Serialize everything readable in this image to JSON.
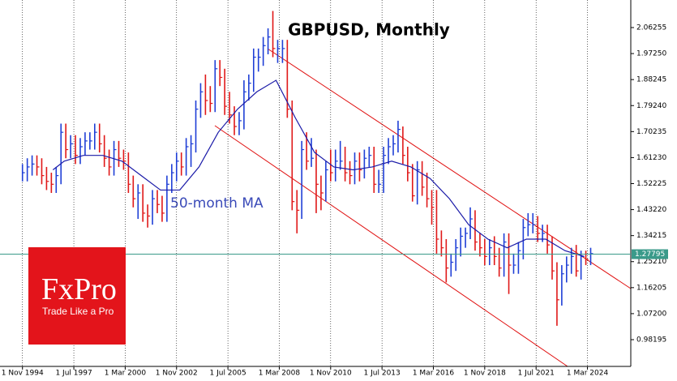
{
  "chart_data": {
    "type": "ohlc",
    "title": "GBPUSD, Monthly",
    "x": [
      "1 Nov 1994",
      "1 Feb 1995",
      "1 May 1995",
      "1 Aug 1995",
      "1 Nov 1995",
      "1 Feb 1996",
      "1 May 1996",
      "1 Aug 1996",
      "1 Nov 1996",
      "1 Feb 1997",
      "1 May 1997",
      "1 Aug 1997",
      "1 Nov 1997",
      "1 Feb 1998",
      "1 May 1998",
      "1 Aug 1998",
      "1 Nov 1998",
      "1 Feb 1999",
      "1 May 1999",
      "1 Aug 1999",
      "1 Nov 1999",
      "1 Feb 2000",
      "1 May 2000",
      "1 Aug 2000",
      "1 Nov 2000",
      "1 Feb 2001",
      "1 May 2001",
      "1 Aug 2001",
      "1 Nov 2001",
      "1 Feb 2002",
      "1 May 2002",
      "1 Aug 2002",
      "1 Nov 2002",
      "1 Feb 2003",
      "1 May 2003",
      "1 Aug 2003",
      "1 Nov 2003",
      "1 Feb 2004",
      "1 May 2004",
      "1 Aug 2004",
      "1 Nov 2004",
      "1 Feb 2005",
      "1 May 2005",
      "1 Aug 2005",
      "1 Nov 2005",
      "1 Feb 2006",
      "1 May 2006",
      "1 Aug 2006",
      "1 Nov 2006",
      "1 Feb 2007",
      "1 May 2007",
      "1 Aug 2007",
      "1 Nov 2007",
      "1 Feb 2008",
      "1 May 2008",
      "1 Aug 2008",
      "1 Nov 2008",
      "1 Feb 2009",
      "1 May 2009",
      "1 Aug 2009",
      "1 Nov 2009",
      "1 Feb 2010",
      "1 May 2010",
      "1 Aug 2010",
      "1 Nov 2010",
      "1 Feb 2011",
      "1 May 2011",
      "1 Aug 2011",
      "1 Nov 2011",
      "1 Feb 2012",
      "1 May 2012",
      "1 Aug 2012",
      "1 Nov 2012",
      "1 Feb 2013",
      "1 May 2013",
      "1 Aug 2013",
      "1 Nov 2013",
      "1 Feb 2014",
      "1 May 2014",
      "1 Aug 2014",
      "1 Nov 2014",
      "1 Feb 2015",
      "1 May 2015",
      "1 Aug 2015",
      "1 Nov 2015",
      "1 Feb 2016",
      "1 May 2016",
      "1 Aug 2016",
      "1 Nov 2016",
      "1 Feb 2017",
      "1 May 2017",
      "1 Aug 2017",
      "1 Nov 2017",
      "1 Feb 2018",
      "1 May 2018",
      "1 Aug 2018",
      "1 Nov 2018",
      "1 Feb 2019",
      "1 May 2019",
      "1 Aug 2019",
      "1 Nov 2019",
      "1 Feb 2020",
      "1 May 2020",
      "1 Aug 2020",
      "1 Nov 2020",
      "1 Feb 2021",
      "1 May 2021",
      "1 Aug 2021",
      "1 Nov 2021",
      "1 Feb 2022",
      "1 May 2022",
      "1 Aug 2022",
      "1 Nov 2022",
      "1 Feb 2023",
      "1 May 2023",
      "1 Aug 2023",
      "1 Nov 2023",
      "1 Feb 2024",
      "1 May 2024"
    ],
    "high": [
      1.59,
      1.61,
      1.62,
      1.62,
      1.61,
      1.58,
      1.56,
      1.58,
      1.73,
      1.73,
      1.69,
      1.69,
      1.68,
      1.7,
      1.7,
      1.73,
      1.73,
      1.69,
      1.64,
      1.67,
      1.67,
      1.64,
      1.63,
      1.55,
      1.52,
      1.52,
      1.45,
      1.5,
      1.5,
      1.48,
      1.55,
      1.59,
      1.63,
      1.63,
      1.68,
      1.69,
      1.81,
      1.87,
      1.9,
      1.86,
      1.95,
      1.95,
      1.92,
      1.84,
      1.79,
      1.77,
      1.88,
      1.9,
      1.99,
      1.99,
      2.03,
      2.06,
      2.12,
      2.02,
      2.02,
      2.02,
      1.81,
      1.5,
      1.67,
      1.7,
      1.68,
      1.64,
      1.55,
      1.6,
      1.64,
      1.64,
      1.67,
      1.65,
      1.6,
      1.63,
      1.63,
      1.64,
      1.65,
      1.65,
      1.57,
      1.65,
      1.68,
      1.69,
      1.74,
      1.72,
      1.65,
      1.59,
      1.6,
      1.6,
      1.56,
      1.5,
      1.5,
      1.36,
      1.33,
      1.28,
      1.33,
      1.37,
      1.37,
      1.44,
      1.43,
      1.35,
      1.33,
      1.33,
      1.34,
      1.3,
      1.35,
      1.35,
      1.28,
      1.32,
      1.4,
      1.42,
      1.42,
      1.41,
      1.38,
      1.38,
      1.34,
      1.25,
      1.24,
      1.27,
      1.3,
      1.31,
      1.29,
      1.29,
      1.3
    ],
    "low": [
      1.53,
      1.53,
      1.55,
      1.55,
      1.52,
      1.5,
      1.49,
      1.49,
      1.52,
      1.61,
      1.61,
      1.59,
      1.59,
      1.62,
      1.64,
      1.64,
      1.63,
      1.58,
      1.55,
      1.55,
      1.58,
      1.57,
      1.49,
      1.44,
      1.4,
      1.39,
      1.37,
      1.38,
      1.42,
      1.39,
      1.39,
      1.49,
      1.53,
      1.55,
      1.55,
      1.58,
      1.63,
      1.75,
      1.76,
      1.77,
      1.77,
      1.86,
      1.76,
      1.73,
      1.69,
      1.69,
      1.71,
      1.81,
      1.84,
      1.91,
      1.93,
      1.97,
      1.96,
      1.94,
      1.94,
      1.75,
      1.43,
      1.35,
      1.4,
      1.57,
      1.58,
      1.42,
      1.43,
      1.46,
      1.53,
      1.53,
      1.57,
      1.53,
      1.52,
      1.52,
      1.53,
      1.54,
      1.58,
      1.49,
      1.49,
      1.49,
      1.59,
      1.62,
      1.63,
      1.59,
      1.53,
      1.46,
      1.45,
      1.48,
      1.44,
      1.38,
      1.28,
      1.27,
      1.18,
      1.2,
      1.22,
      1.27,
      1.3,
      1.33,
      1.29,
      1.27,
      1.24,
      1.24,
      1.24,
      1.2,
      1.2,
      1.14,
      1.21,
      1.21,
      1.26,
      1.34,
      1.35,
      1.32,
      1.32,
      1.28,
      1.19,
      1.03,
      1.1,
      1.18,
      1.21,
      1.2,
      1.19,
      1.24,
      1.24
    ],
    "close": [
      1.56,
      1.58,
      1.59,
      1.58,
      1.55,
      1.53,
      1.52,
      1.55,
      1.7,
      1.64,
      1.66,
      1.62,
      1.65,
      1.67,
      1.67,
      1.7,
      1.66,
      1.61,
      1.58,
      1.64,
      1.61,
      1.6,
      1.52,
      1.47,
      1.49,
      1.42,
      1.41,
      1.47,
      1.45,
      1.42,
      1.52,
      1.56,
      1.6,
      1.58,
      1.65,
      1.66,
      1.78,
      1.84,
      1.81,
      1.8,
      1.92,
      1.89,
      1.79,
      1.76,
      1.72,
      1.74,
      1.84,
      1.87,
      1.96,
      1.96,
      2.0,
      2.03,
      1.99,
      1.99,
      1.99,
      1.78,
      1.46,
      1.43,
      1.64,
      1.6,
      1.61,
      1.52,
      1.49,
      1.57,
      1.56,
      1.6,
      1.6,
      1.56,
      1.55,
      1.6,
      1.57,
      1.61,
      1.62,
      1.52,
      1.52,
      1.62,
      1.65,
      1.66,
      1.71,
      1.62,
      1.56,
      1.48,
      1.57,
      1.51,
      1.47,
      1.44,
      1.33,
      1.3,
      1.23,
      1.25,
      1.3,
      1.34,
      1.35,
      1.4,
      1.32,
      1.3,
      1.27,
      1.3,
      1.27,
      1.23,
      1.32,
      1.24,
      1.24,
      1.29,
      1.37,
      1.38,
      1.38,
      1.35,
      1.35,
      1.31,
      1.22,
      1.12,
      1.21,
      1.24,
      1.27,
      1.22,
      1.27,
      1.26,
      1.28
    ],
    "up_color": "#1f3fd6",
    "down_color": "#e01818",
    "ma_label": "50-month MA",
    "ma_color": "#1a1aa8",
    "ma_x": [
      "1 Jun 1996",
      "1 Jan 1997",
      "1 Jan 1998",
      "1 Jan 1999",
      "1 Jan 2000",
      "1 Jan 2001",
      "1 Jan 2002",
      "1 Jan 2003",
      "1 Jan 2004",
      "1 Jan 2005",
      "1 Jan 2006",
      "1 Jan 2007",
      "1 Jan 2008",
      "1 Jan 2009",
      "1 Jan 2010",
      "1 Jan 2011",
      "1 Jan 2012",
      "1 Jan 2013",
      "1 Jan 2014",
      "1 Jan 2015",
      "1 Jan 2016",
      "1 Jan 2017",
      "1 Jan 2018",
      "1 Jan 2019",
      "1 Jan 2020",
      "1 Jan 2021",
      "1 Jan 2022",
      "1 Jan 2023",
      "1 Jan 2024"
    ],
    "ma_values": [
      1.57,
      1.6,
      1.62,
      1.62,
      1.6,
      1.55,
      1.5,
      1.5,
      1.58,
      1.7,
      1.78,
      1.84,
      1.88,
      1.75,
      1.63,
      1.58,
      1.57,
      1.58,
      1.6,
      1.58,
      1.54,
      1.47,
      1.38,
      1.33,
      1.3,
      1.33,
      1.33,
      1.29,
      1.27
    ],
    "last_price": 1.27795,
    "xlim": [
      "1 Sep 1993",
      "1 Jun 2026"
    ],
    "xticks": [
      "1 Nov 1994",
      "1 Jul 1997",
      "1 Mar 2000",
      "1 Nov 2002",
      "1 Jul 2005",
      "1 Mar 2008",
      "1 Nov 2010",
      "1 Jul 2013",
      "1 Mar 2016",
      "1 Nov 2018",
      "1 Jul 2021",
      "1 Mar 2024"
    ],
    "ylim": [
      0.8893,
      2.158
    ],
    "yticks": [
      0.98195,
      {
        "value": 1.072,
        "label": "1.07200"
      },
      1.16205,
      {
        "value": 1.2521,
        "label": "1.25210"
      },
      1.34215,
      {
        "value": 1.4322,
        "label": "1.43220"
      },
      1.52225,
      {
        "value": 1.6123,
        "label": "1.61230"
      },
      1.70235,
      {
        "value": 1.7924,
        "label": "1.79240"
      },
      1.88245,
      {
        "value": 1.9725,
        "label": "1.97250"
      },
      2.06255
    ],
    "grid": true
  },
  "logo": {
    "name": "FxPro",
    "tagline": "Trade Like a Pro"
  }
}
